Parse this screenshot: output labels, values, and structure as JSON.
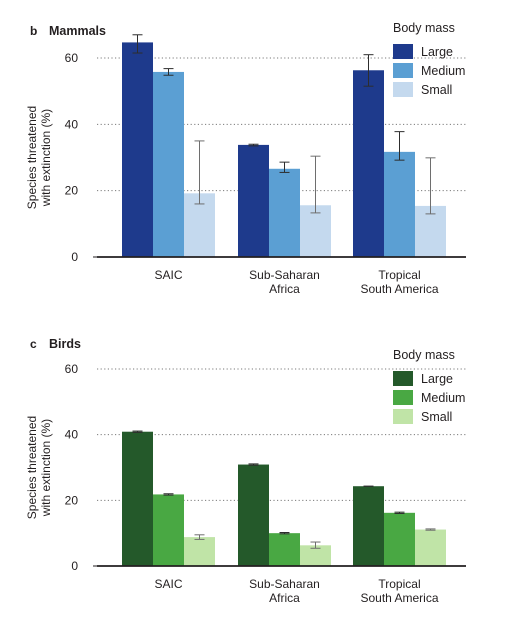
{
  "chart_data": [
    {
      "type": "bar",
      "panel_letter": "b",
      "title": "Mammals",
      "ylabel": "Species threatened with extinction (%)",
      "ylabel_lines": [
        "Species threatened",
        "with extinction (%)"
      ],
      "ylim": [
        0,
        60
      ],
      "yticks": [
        "0",
        "20",
        "40",
        "60"
      ],
      "grid": true,
      "legend_title": "Body mass",
      "legend_position": "top-right",
      "categories": [
        "SAIC",
        "Sub-Saharan Africa",
        "Tropical South America"
      ],
      "category_lines": [
        [
          "SAIC"
        ],
        [
          "Sub-Saharan",
          "Africa"
        ],
        [
          "Tropical",
          "South America"
        ]
      ],
      "series": [
        {
          "name": "Large",
          "color": "#1e3a8c",
          "values": [
            64.7,
            33.8,
            56.3
          ],
          "error_low": [
            61.5,
            33.5,
            51.5
          ],
          "error_high": [
            67,
            34,
            61
          ]
        },
        {
          "name": "Medium",
          "color": "#5b9fd3",
          "values": [
            55.8,
            26.6,
            31.7
          ],
          "error_low": [
            54.8,
            25.5,
            29.2
          ],
          "error_high": [
            56.8,
            28.6,
            37.8
          ]
        },
        {
          "name": "Small",
          "color": "#c4d9ee",
          "values": [
            19.2,
            15.6,
            15.4
          ],
          "error_low": [
            16,
            13.3,
            13
          ],
          "error_high": [
            35,
            30.4,
            29.9
          ]
        }
      ]
    },
    {
      "type": "bar",
      "panel_letter": "c",
      "title": "Birds",
      "ylabel": "Species threatened with extinction (%)",
      "ylabel_lines": [
        "Species threatened",
        "with extinction (%)"
      ],
      "ylim": [
        0,
        60
      ],
      "yticks": [
        "0",
        "20",
        "40",
        "60"
      ],
      "grid": true,
      "legend_title": "Body mass",
      "legend_position": "top-right",
      "categories": [
        "SAIC",
        "Sub-Saharan Africa",
        "Tropical South America"
      ],
      "category_lines": [
        [
          "SAIC"
        ],
        [
          "Sub-Saharan",
          "Africa"
        ],
        [
          "Tropical",
          "South America"
        ]
      ],
      "series": [
        {
          "name": "Large",
          "color": "#24592a",
          "values": [
            40.9,
            30.9,
            24.3
          ],
          "error_low": [
            40.7,
            30.7,
            24.3
          ],
          "error_high": [
            41.1,
            31.1,
            24.3
          ]
        },
        {
          "name": "Medium",
          "color": "#49a843",
          "values": [
            21.8,
            10,
            16.2
          ],
          "error_low": [
            21.6,
            9.8,
            16
          ],
          "error_high": [
            22,
            10.2,
            16.4
          ]
        },
        {
          "name": "Small",
          "color": "#c0e4a7",
          "values": [
            8.8,
            6.3,
            11.1
          ],
          "error_low": [
            8.1,
            5.4,
            10.9
          ],
          "error_high": [
            9.5,
            7.3,
            11.3
          ]
        }
      ]
    }
  ]
}
